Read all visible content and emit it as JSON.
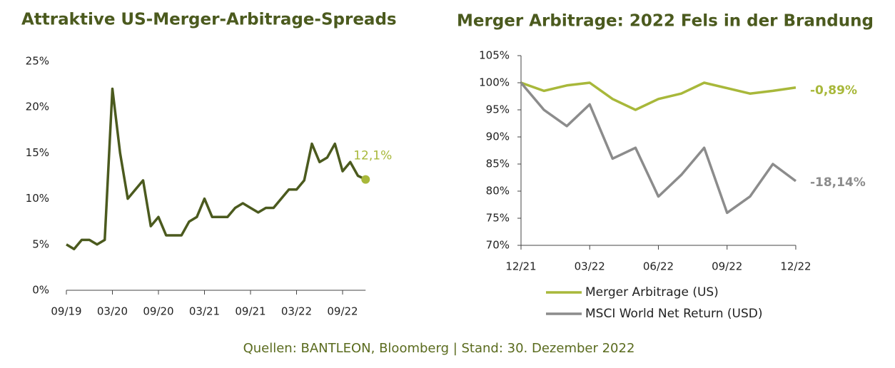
{
  "chart_data": [
    {
      "type": "line",
      "title": "Attraktive US-Merger-Arbitrage-Spreads",
      "categories": [
        "09/19",
        "10/19",
        "11/19",
        "12/19",
        "01/20",
        "02/20",
        "03/20",
        "04/20",
        "05/20",
        "06/20",
        "07/20",
        "08/20",
        "09/20",
        "10/20",
        "11/20",
        "12/20",
        "01/21",
        "02/21",
        "03/21",
        "04/21",
        "05/21",
        "06/21",
        "07/21",
        "08/21",
        "09/21",
        "10/21",
        "11/21",
        "12/21",
        "01/22",
        "02/22",
        "03/22",
        "04/22",
        "05/22",
        "06/22",
        "07/22",
        "08/22",
        "09/22",
        "10/22",
        "11/22",
        "12/22"
      ],
      "series": [
        {
          "color": "#4b5a1e",
          "values": [
            5,
            4.5,
            5.5,
            5.5,
            5,
            5.5,
            22,
            15,
            10,
            11,
            12,
            7,
            8,
            6,
            6,
            6,
            7.5,
            8,
            10,
            8,
            8,
            8,
            9,
            9.5,
            9,
            8.5,
            9,
            9,
            10,
            11,
            11,
            12,
            16,
            14,
            14.5,
            16,
            13,
            14,
            12.5,
            12.1
          ],
          "value_labels": {
            "39": "12,1%"
          },
          "label_color": "#a8b83a"
        }
      ],
      "xticks": [
        "09/19",
        "03/20",
        "09/20",
        "03/21",
        "09/21",
        "03/22",
        "09/22"
      ],
      "ylim": [
        0,
        25
      ],
      "yticks": [
        {
          "value": 0,
          "label": "0%"
        },
        {
          "value": 5,
          "label": "5%"
        },
        {
          "value": 10,
          "label": "10%"
        },
        {
          "value": 15,
          "label": "15%"
        },
        {
          "value": 20,
          "label": "20%"
        },
        {
          "value": 25,
          "label": "25%"
        }
      ]
    },
    {
      "type": "line",
      "title": "Merger Arbitrage: 2022 Fels in der Brandung",
      "categories": [
        "12/21",
        "01/22",
        "02/22",
        "03/22",
        "04/22",
        "05/22",
        "06/22",
        "07/22",
        "08/22",
        "09/22",
        "10/22",
        "11/22",
        "12/22"
      ],
      "series": [
        {
          "name": "Merger Arbitrage (US)",
          "color": "#a8b83a",
          "values": [
            100,
            98.5,
            99.5,
            100,
            97,
            95,
            97,
            98,
            100,
            99,
            98,
            98.5,
            99.11
          ],
          "end_label": "-0,89%"
        },
        {
          "name": "MSCI World Net Return (USD)",
          "color": "#8c8c8c",
          "values": [
            100,
            95,
            92,
            96,
            86,
            88,
            79,
            83,
            88,
            76,
            79,
            85,
            81.86
          ],
          "end_label": "-18,14%"
        }
      ],
      "xticks": [
        "12/21",
        "03/22",
        "06/22",
        "09/22",
        "12/22"
      ],
      "ylim": [
        70,
        105
      ],
      "yticks": [
        {
          "value": 70,
          "label": "70%"
        },
        {
          "value": 75,
          "label": "75%"
        },
        {
          "value": 80,
          "label": "80%"
        },
        {
          "value": 85,
          "label": "85%"
        },
        {
          "value": 90,
          "label": "90%"
        },
        {
          "value": 95,
          "label": "95%"
        },
        {
          "value": 100,
          "label": "100%"
        },
        {
          "value": 105,
          "label": "105%"
        }
      ],
      "legend": "bottom"
    }
  ],
  "source": "Quellen: BANTLEON, Bloomberg | Stand: 30. Dezember 2022"
}
